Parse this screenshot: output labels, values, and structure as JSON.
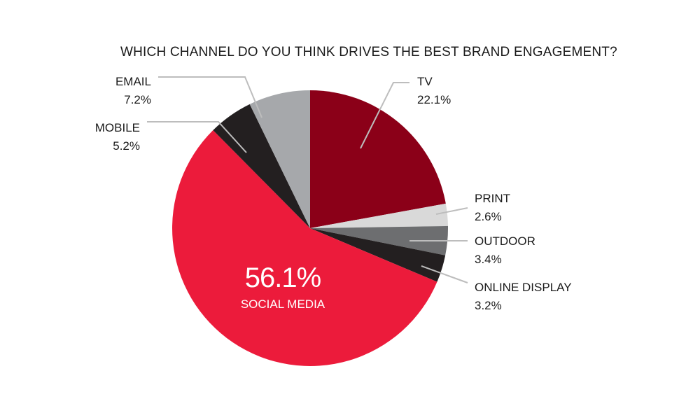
{
  "chart_data": {
    "type": "pie",
    "title": "WHICH CHANNEL DO YOU THINK DRIVES THE BEST BRAND ENGAGEMENT?",
    "slices": [
      {
        "label": "TV",
        "value": 22.1,
        "value_text": "22.1%",
        "color": "#8b0018"
      },
      {
        "label": "PRINT",
        "value": 2.6,
        "value_text": "2.6%",
        "color": "#d9d9d9"
      },
      {
        "label": "OUTDOOR",
        "value": 3.4,
        "value_text": "3.4%",
        "color": "#6d6e70"
      },
      {
        "label": "ONLINE DISPLAY",
        "value": 3.2,
        "value_text": "3.2%",
        "color": "#231f20"
      },
      {
        "label": "SOCIAL MEDIA",
        "value": 56.1,
        "value_text": "56.1%",
        "color": "#ec1b3b"
      },
      {
        "label": "MOBILE",
        "value": 5.2,
        "value_text": "5.2%",
        "color": "#231f20"
      },
      {
        "label": "EMAIL",
        "value": 7.2,
        "value_text": "7.2%",
        "color": "#a6a8ab"
      }
    ]
  }
}
